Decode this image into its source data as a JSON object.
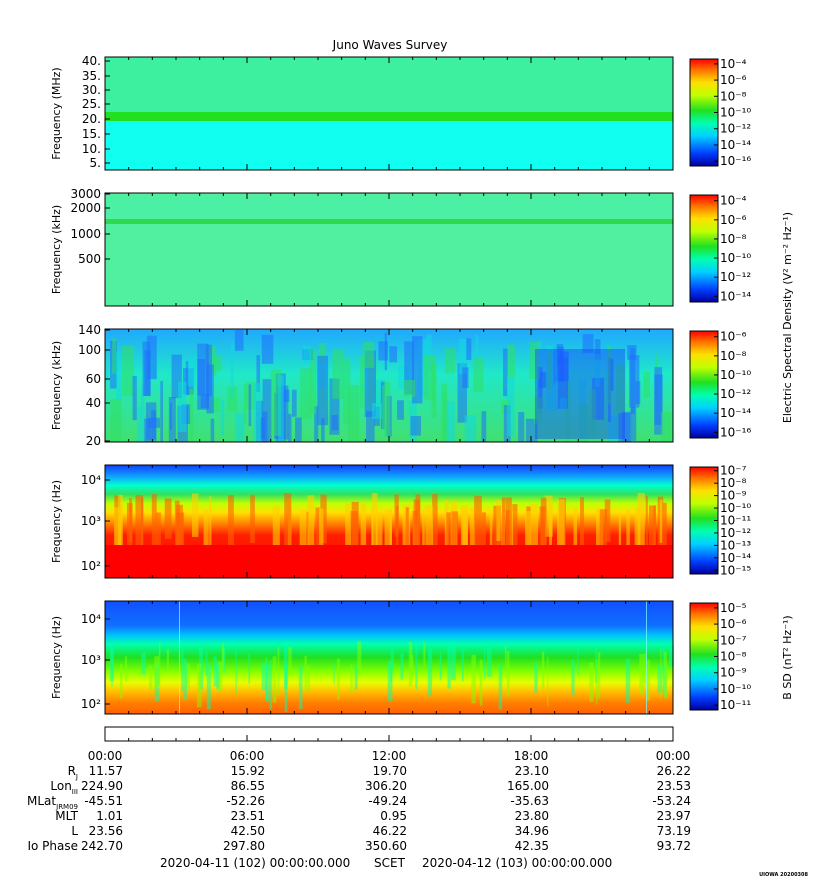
{
  "title": "Juno Waves Survey",
  "footer": {
    "start": "2020-04-11 (102) 00:00:00.000",
    "scet": "SCET",
    "end": "2020-04-12 (103) 00:00:00.000",
    "credit": "UIOWA 20200308"
  },
  "colorbar_titles": {
    "electric": "Electric Spectral Density (V² m⁻² Hz⁻¹)",
    "magnetic": "B SD (nT² Hz⁻¹)"
  },
  "ephemeris": {
    "labels": [
      "R",
      "Lon",
      "MLat",
      "MLT",
      "L",
      "Io Phase"
    ],
    "label_subs": [
      "J",
      "III",
      "JRM09",
      "",
      "",
      ""
    ],
    "time_ticks": [
      "00:00",
      "06:00",
      "12:00",
      "18:00",
      "00:00"
    ],
    "rows": [
      [
        "11.57",
        "15.92",
        "19.70",
        "23.10",
        "26.22"
      ],
      [
        "224.90",
        "86.55",
        "306.20",
        "165.00",
        "23.53"
      ],
      [
        "-45.51",
        "-52.26",
        "-49.24",
        "-35.63",
        "-53.24"
      ],
      [
        "1.01",
        "23.51",
        "0.95",
        "23.80",
        "23.97"
      ],
      [
        "23.56",
        "42.50",
        "46.22",
        "34.96",
        "73.19"
      ],
      [
        "242.70",
        "297.80",
        "350.60",
        "42.35",
        "93.72"
      ]
    ]
  },
  "colors": {
    "background_green": "#3cf078",
    "cyan": "#00ffe0",
    "blue": "#2060ff",
    "red": "#ff0000"
  },
  "chart_data": [
    {
      "type": "heatmap",
      "ylabel": "Frequency (MHz)",
      "y_ticks": [
        "40.",
        "35.",
        "30.",
        "25.",
        "20.",
        "15.",
        "10.",
        "5."
      ],
      "ylim": [
        3,
        40
      ],
      "colorbar_ticks": [
        "10⁻⁴",
        "10⁻⁶",
        "10⁻⁸",
        "10⁻¹⁰",
        "10⁻¹²",
        "10⁻¹⁴",
        "10⁻¹⁶"
      ],
      "colorbar_title": "",
      "band_frequency": 21
    },
    {
      "type": "heatmap",
      "ylabel": "Frequency (kHz)",
      "y_ticks": [
        "3000",
        "2000",
        "1000",
        "500"
      ],
      "ylim": [
        200,
        3000
      ],
      "colorbar_ticks": [
        "10⁻⁴",
        "10⁻⁶",
        "10⁻⁸",
        "10⁻¹⁰",
        "10⁻¹²",
        "10⁻¹⁴"
      ],
      "colorbar_title": "electric",
      "band_frequency": 1400
    },
    {
      "type": "heatmap",
      "ylabel": "Frequency (kHz)",
      "y_ticks": [
        "140",
        "100",
        "60",
        "40",
        "20"
      ],
      "ylim": [
        20,
        140
      ],
      "colorbar_ticks": [
        "10⁻⁶",
        "10⁻⁸",
        "10⁻¹⁰",
        "10⁻¹²",
        "10⁻¹⁴",
        "10⁻¹⁶"
      ],
      "colorbar_title": ""
    },
    {
      "type": "heatmap",
      "ylabel": "Frequency (Hz)",
      "y_ticks": [
        "10⁴",
        "10³",
        "10²"
      ],
      "ylim": [
        50,
        20000
      ],
      "colorbar_ticks": [
        "10⁻⁷",
        "10⁻⁸",
        "10⁻⁹",
        "10⁻¹⁰",
        "10⁻¹¹",
        "10⁻¹²",
        "10⁻¹³",
        "10⁻¹⁴",
        "10⁻¹⁵"
      ],
      "colorbar_title": ""
    },
    {
      "type": "heatmap",
      "ylabel": "Frequency (Hz)",
      "y_ticks": [
        "10⁴",
        "10³",
        "10²"
      ],
      "ylim": [
        50,
        20000
      ],
      "colorbar_ticks": [
        "10⁻⁵",
        "10⁻⁶",
        "10⁻⁷",
        "10⁻⁸",
        "10⁻⁹",
        "10⁻¹⁰",
        "10⁻¹¹"
      ],
      "colorbar_title": "magnetic"
    }
  ]
}
